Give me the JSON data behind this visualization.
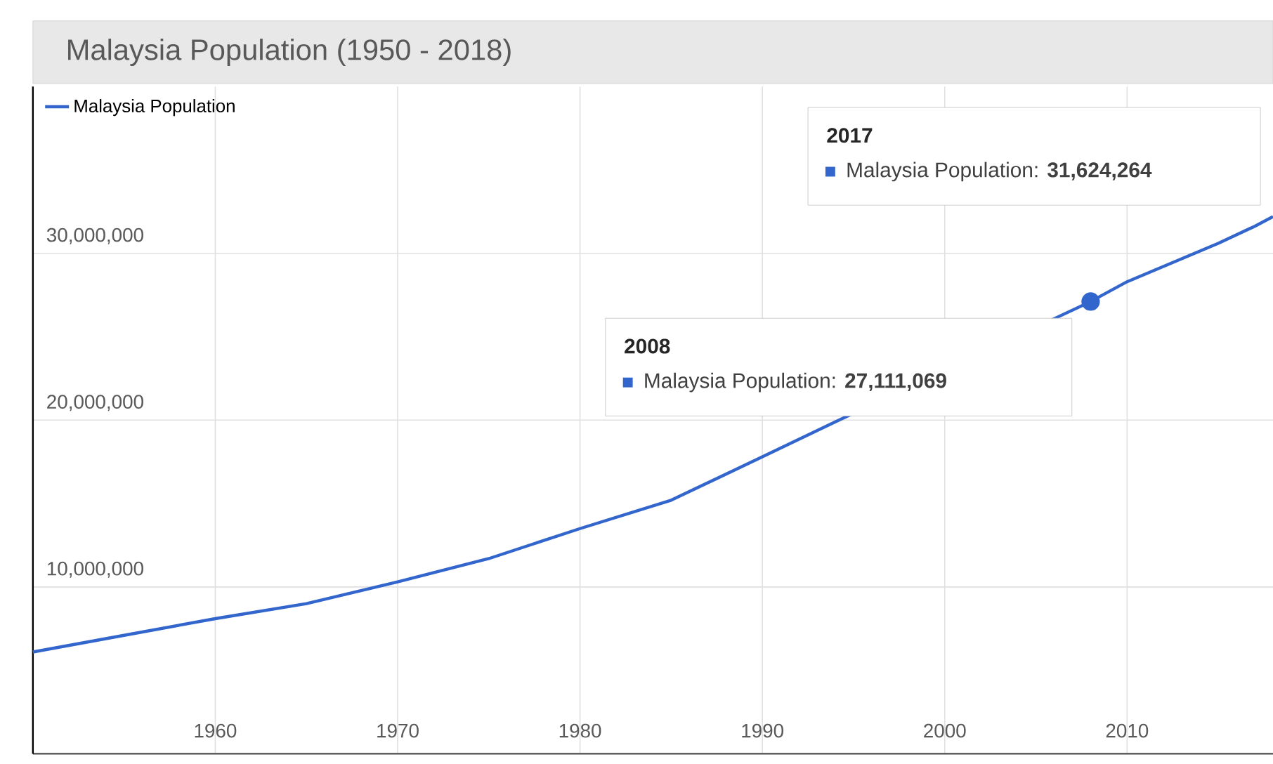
{
  "chart_data": {
    "type": "line",
    "title": "Malaysia Population (1950 - 2018)",
    "x": [
      1950,
      1955,
      1960,
      1965,
      1970,
      1975,
      1980,
      1985,
      1990,
      1994,
      2008,
      2010,
      2015,
      2017,
      2018
    ],
    "series": [
      {
        "name": "Malaysia Population",
        "color": "#3366cc",
        "values": [
          6100000,
          7100000,
          8100000,
          9000000,
          10300000,
          11700000,
          13500000,
          15200000,
          17800000,
          19900000,
          27111069,
          28300000,
          30600000,
          31624264,
          32200000
        ]
      },
      {
        "type": "scatter",
        "marker": "circle",
        "color": "#3366cc",
        "x": [
          2008
        ],
        "values": [
          27111069
        ]
      }
    ],
    "xlim": [
      1950,
      2018
    ],
    "xticks": [
      1960,
      1970,
      1980,
      1990,
      2000,
      2010
    ],
    "ylim": [
      0,
      40000000
    ],
    "yticks": [
      {
        "value": 10000000,
        "label": "10,000,000"
      },
      {
        "value": 20000000,
        "label": "20,000,000"
      },
      {
        "value": 30000000,
        "label": "30,000,000"
      }
    ],
    "grid": true,
    "legend": "top left",
    "annotations": [
      "2008",
      "Malaysia Population: **27,111,069**",
      "2017",
      "Malaysia Population: **31,624,264**"
    ]
  }
}
